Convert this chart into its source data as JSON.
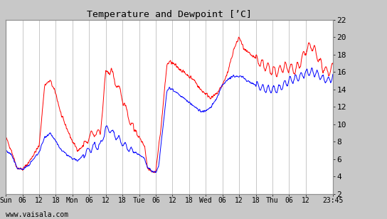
{
  "title": "Temperature and Dewpoint [’C]",
  "ylabel_right_ticks": [
    2,
    4,
    6,
    8,
    10,
    12,
    14,
    16,
    18,
    20,
    22
  ],
  "ylim": [
    2,
    22
  ],
  "x_tick_labels": [
    "Sun",
    "06",
    "12",
    "18",
    "Mon",
    "06",
    "12",
    "18",
    "Tue",
    "06",
    "12",
    "18",
    "Wed",
    "06",
    "12",
    "18",
    "Thu",
    "06",
    "12",
    "23:45"
  ],
  "x_tick_positions": [
    0,
    6,
    12,
    18,
    24,
    30,
    36,
    42,
    48,
    54,
    60,
    66,
    72,
    78,
    84,
    90,
    96,
    102,
    108,
    117.75
  ],
  "background_color": "#c8c8c8",
  "plot_background": "#ffffff",
  "grid_color": "#b0b0b0",
  "temp_color": "#ff0000",
  "dewpoint_color": "#0000ff",
  "watermark": "www.vaisala.com",
  "line_width": 0.7
}
